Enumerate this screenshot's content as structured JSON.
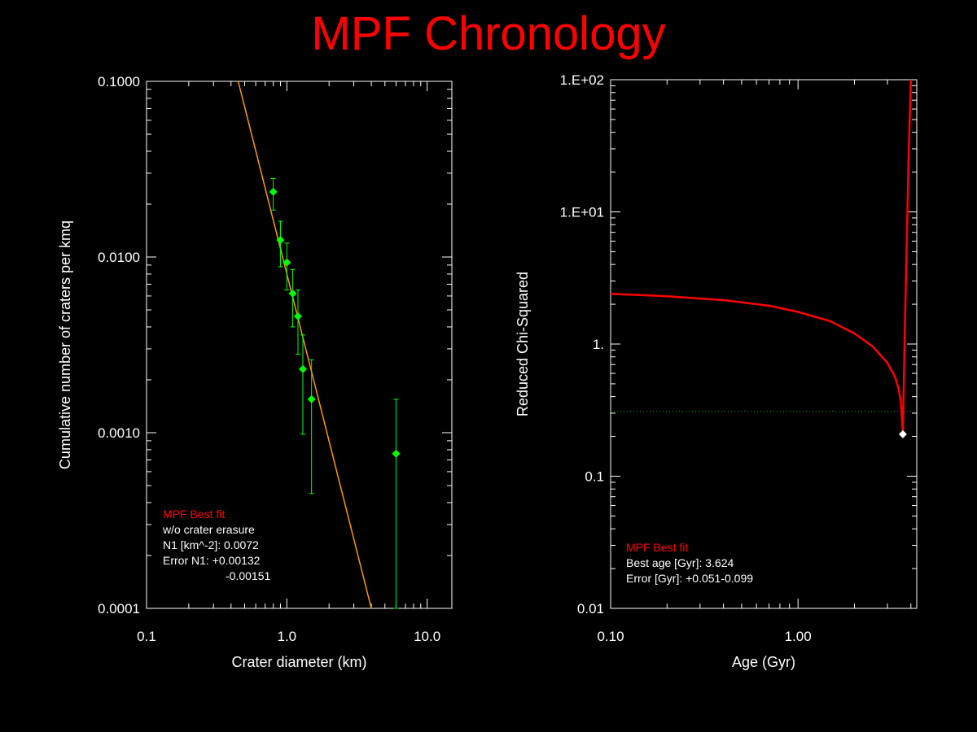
{
  "title": "MPF Chronology",
  "colors": {
    "background": "#000000",
    "title": "#ff0000",
    "axes": "#ffffff",
    "points": "#00ff00",
    "fit_line": "#ff9900",
    "chi_curve": "#ff0000",
    "threshold": "#00aa00",
    "min_marker": "#ffffff",
    "legend_title": "#ff0000"
  },
  "chart_data": [
    {
      "type": "scatter",
      "xscale": "log",
      "yscale": "log",
      "xlim": [
        0.1,
        15
      ],
      "ylim": [
        0.0001,
        0.1
      ],
      "xlabel": "Crater diameter (km)",
      "ylabel": "Cumulative number of craters per kmq",
      "xticks": [
        0.1,
        1.0,
        10.0
      ],
      "xtick_labels": [
        "0.1",
        "1.0",
        "10.0"
      ],
      "yticks": [
        0.0001,
        0.001,
        0.01,
        0.1
      ],
      "ytick_labels": [
        "0.0001",
        "0.0010",
        "0.0100",
        "0.1000"
      ],
      "points": [
        {
          "x": 0.8,
          "y": 0.0235,
          "ylow": 0.0185,
          "yhigh": 0.028
        },
        {
          "x": 0.9,
          "y": 0.0125,
          "ylow": 0.0088,
          "yhigh": 0.016
        },
        {
          "x": 1.0,
          "y": 0.0093,
          "ylow": 0.0065,
          "yhigh": 0.012
        },
        {
          "x": 1.1,
          "y": 0.0062,
          "ylow": 0.004,
          "yhigh": 0.0085
        },
        {
          "x": 1.2,
          "y": 0.0046,
          "ylow": 0.0028,
          "yhigh": 0.0065
        },
        {
          "x": 1.3,
          "y": 0.0023,
          "ylow": 0.00098,
          "yhigh": 0.0036
        },
        {
          "x": 1.5,
          "y": 0.00155,
          "ylow": 0.00045,
          "yhigh": 0.0026
        },
        {
          "x": 6.0,
          "y": 0.00076,
          "ylow": 0.0001,
          "yhigh": 0.00155
        }
      ],
      "fit_line": {
        "x": [
          0.45,
          4.0
        ],
        "y": [
          0.1,
          0.0001
        ]
      },
      "legend": {
        "title": "MPF Best fit",
        "lines": [
          "w/o crater erasure",
          "N1 [km^-2]: 0.0072",
          "Error N1: +0.00132",
          "-0.00151"
        ]
      }
    },
    {
      "type": "line",
      "xscale": "log",
      "yscale": "log",
      "xlim": [
        0.1,
        4.3
      ],
      "ylim": [
        0.01,
        100
      ],
      "xlabel": "Age (Gyr)",
      "ylabel": "Reduced Chi-Squared",
      "xticks": [
        0.1,
        1.0
      ],
      "xtick_labels": [
        "0.10",
        "1.00"
      ],
      "yticks": [
        0.01,
        0.1,
        1,
        10,
        100
      ],
      "ytick_labels": [
        "0.01",
        "0.1",
        "1.",
        "1.E+01",
        "1.E+02"
      ],
      "curve": {
        "x": [
          0.1,
          0.2,
          0.4,
          0.7,
          1.0,
          1.5,
          2.0,
          2.5,
          3.0,
          3.3,
          3.45,
          3.55,
          3.624,
          3.7,
          3.9,
          4.0
        ],
        "y": [
          2.4,
          2.3,
          2.15,
          1.95,
          1.75,
          1.48,
          1.2,
          0.96,
          0.72,
          0.56,
          0.45,
          0.35,
          0.208,
          1.0,
          30,
          110
        ]
      },
      "threshold_y": 0.31,
      "best_point": {
        "x": 3.624,
        "y": 0.208
      },
      "legend": {
        "title": "MPF Best fit",
        "lines": [
          "Best age [Gyr]: 3.624",
          "Error [Gyr]: +0.051-0.099"
        ]
      }
    }
  ]
}
